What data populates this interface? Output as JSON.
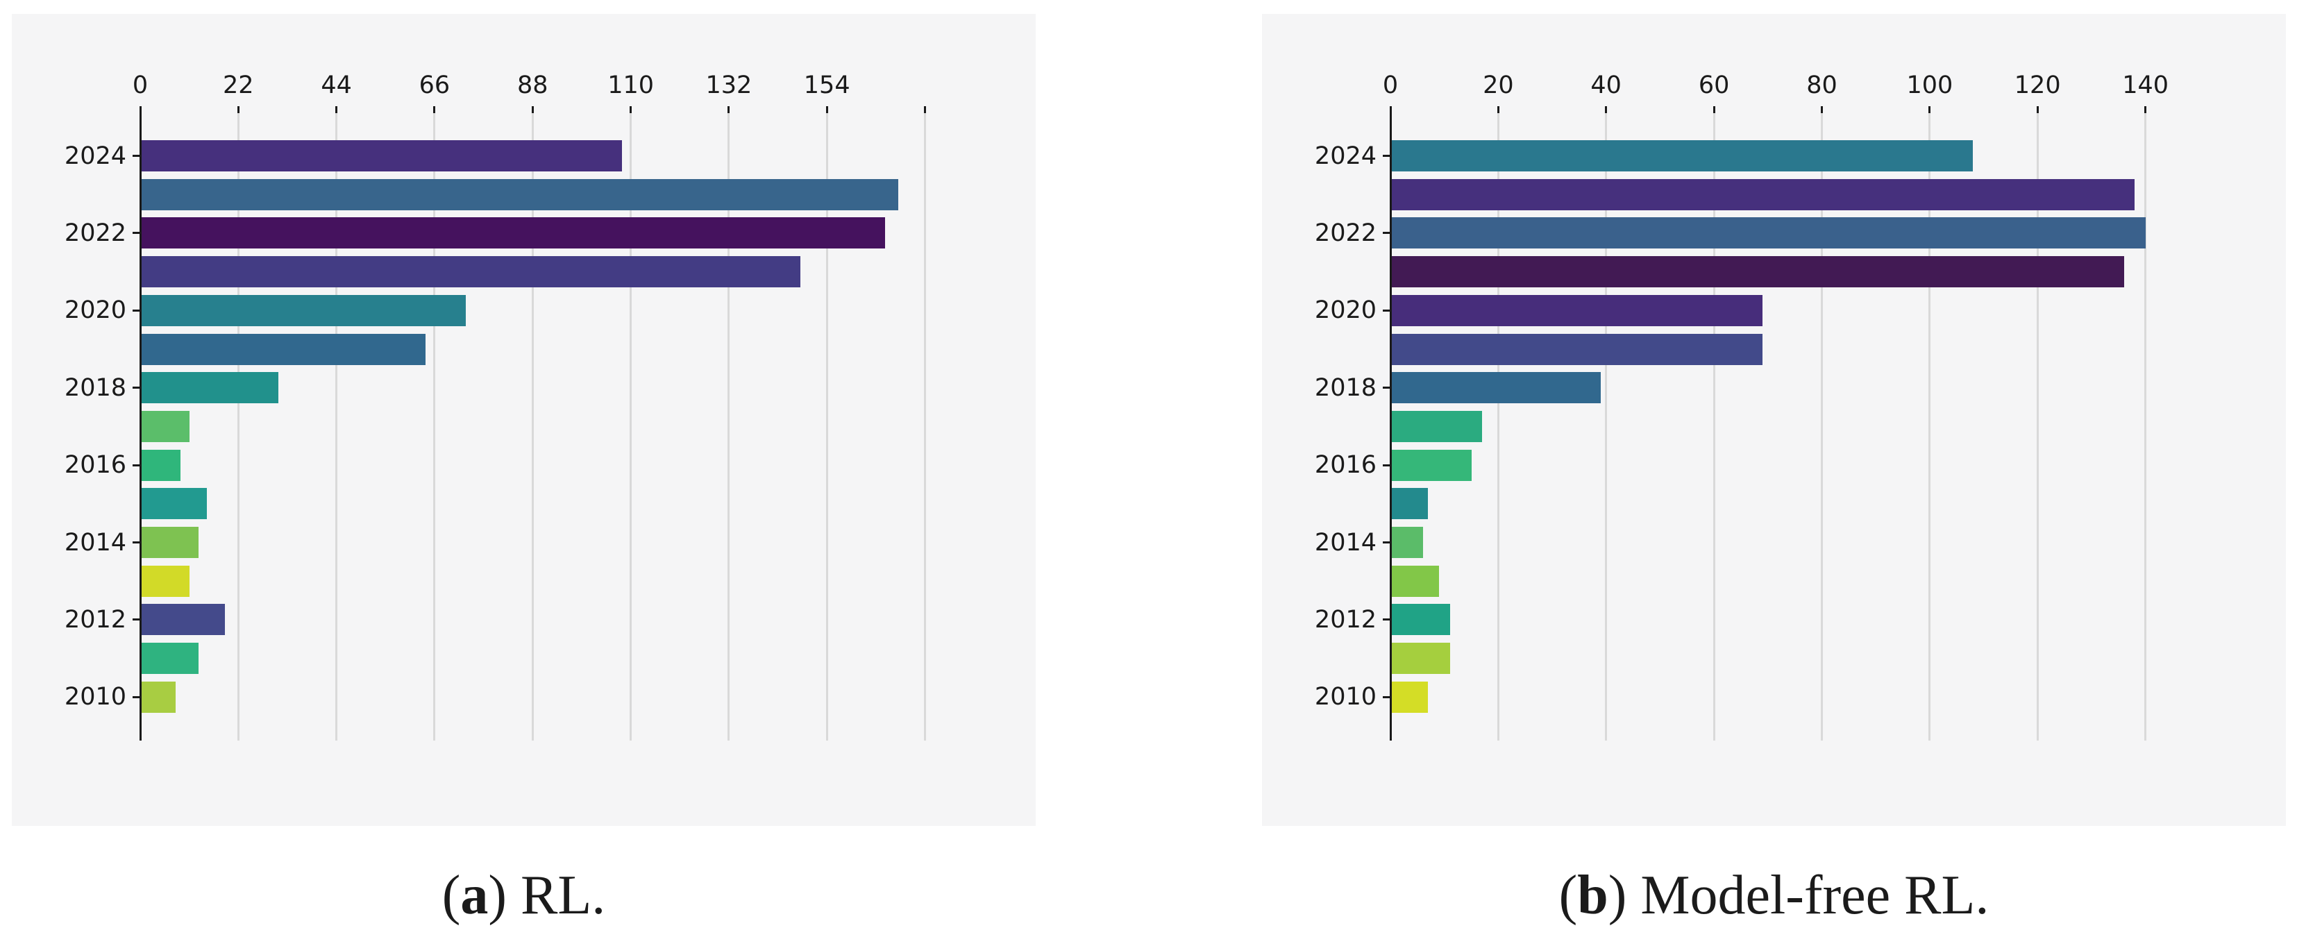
{
  "colors": {
    "page_bg": "#ffffff",
    "panel_bg": "#f5f5f6",
    "grid": "#d9d9d9",
    "axis": "#1a1a1a",
    "tick_text": "#1a1a1a"
  },
  "chart_data": [
    {
      "type": "bar",
      "orientation": "horizontal",
      "title": "",
      "xlabel": "",
      "ylabel": "",
      "legend": "none",
      "grid": true,
      "xlim": [
        0,
        179.5
      ],
      "x_ticks": [
        0,
        22,
        44,
        66,
        88,
        110,
        132,
        154
      ],
      "x_ticks_unlabeled": [
        176
      ],
      "y_tick_labels": [
        "2024",
        "2022",
        "2020",
        "2018",
        "2016",
        "2014",
        "2012",
        "2010"
      ],
      "rows": [
        {
          "year": "2024",
          "value": 108,
          "color": "#46307d"
        },
        {
          "year": "2023",
          "value": 170,
          "color": "#38658c"
        },
        {
          "year": "2022",
          "value": 167,
          "color": "#45125e"
        },
        {
          "year": "2021",
          "value": 148,
          "color": "#433c84"
        },
        {
          "year": "2020",
          "value": 73,
          "color": "#27808e"
        },
        {
          "year": "2019",
          "value": 64,
          "color": "#31688e"
        },
        {
          "year": "2018",
          "value": 31,
          "color": "#21918c"
        },
        {
          "year": "2017",
          "value": 11,
          "color": "#5bbe6a"
        },
        {
          "year": "2016",
          "value": 9,
          "color": "#2fb67b"
        },
        {
          "year": "2015",
          "value": 15,
          "color": "#229a90"
        },
        {
          "year": "2014",
          "value": 13,
          "color": "#7ec251"
        },
        {
          "year": "2013",
          "value": 11,
          "color": "#d2da28"
        },
        {
          "year": "2012",
          "value": 19,
          "color": "#444a8b"
        },
        {
          "year": "2011",
          "value": 13,
          "color": "#2fb380"
        },
        {
          "year": "2010",
          "value": 8,
          "color": "#a8cd42"
        }
      ],
      "caption": {
        "open": "(",
        "letter": "a",
        "rest": ") RL."
      }
    },
    {
      "type": "bar",
      "orientation": "horizontal",
      "title": "",
      "xlabel": "",
      "ylabel": "",
      "legend": "none",
      "grid": true,
      "xlim": [
        0,
        147
      ],
      "x_ticks": [
        0,
        20,
        40,
        60,
        80,
        100,
        120,
        140
      ],
      "x_ticks_unlabeled": [],
      "y_tick_labels": [
        "2024",
        "2022",
        "2020",
        "2018",
        "2016",
        "2014",
        "2012",
        "2010"
      ],
      "rows": [
        {
          "year": "2024",
          "value": 108,
          "color": "#2a788e"
        },
        {
          "year": "2023",
          "value": 138,
          "color": "#46307d"
        },
        {
          "year": "2022",
          "value": 140,
          "color": "#3a618c"
        },
        {
          "year": "2021",
          "value": 136,
          "color": "#421a54"
        },
        {
          "year": "2020",
          "value": 69,
          "color": "#472d7b"
        },
        {
          "year": "2019",
          "value": 69,
          "color": "#424a8a"
        },
        {
          "year": "2018",
          "value": 39,
          "color": "#31688e"
        },
        {
          "year": "2017",
          "value": 17,
          "color": "#2bab80"
        },
        {
          "year": "2016",
          "value": 15,
          "color": "#35b779"
        },
        {
          "year": "2015",
          "value": 7,
          "color": "#238a8d"
        },
        {
          "year": "2014",
          "value": 6,
          "color": "#5bbc69"
        },
        {
          "year": "2013",
          "value": 9,
          "color": "#82c748"
        },
        {
          "year": "2012",
          "value": 11,
          "color": "#20a386"
        },
        {
          "year": "2011",
          "value": 11,
          "color": "#a5cf3e"
        },
        {
          "year": "2010",
          "value": 7,
          "color": "#d4dd26"
        }
      ],
      "caption": {
        "open": "(",
        "letter": "b",
        "rest": ") Model-free RL."
      }
    }
  ]
}
